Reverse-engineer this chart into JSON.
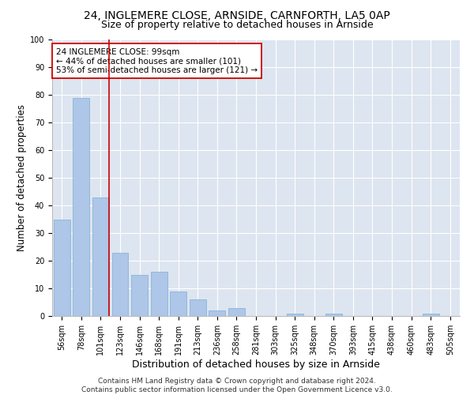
{
  "title_line1": "24, INGLEMERE CLOSE, ARNSIDE, CARNFORTH, LA5 0AP",
  "title_line2": "Size of property relative to detached houses in Arnside",
  "xlabel": "Distribution of detached houses by size in Arnside",
  "ylabel": "Number of detached properties",
  "categories": [
    "56sqm",
    "78sqm",
    "101sqm",
    "123sqm",
    "146sqm",
    "168sqm",
    "191sqm",
    "213sqm",
    "236sqm",
    "258sqm",
    "281sqm",
    "303sqm",
    "325sqm",
    "348sqm",
    "370sqm",
    "393sqm",
    "415sqm",
    "438sqm",
    "460sqm",
    "483sqm",
    "505sqm"
  ],
  "values": [
    35,
    79,
    43,
    23,
    15,
    16,
    9,
    6,
    2,
    3,
    0,
    0,
    1,
    0,
    1,
    0,
    0,
    0,
    0,
    1,
    0
  ],
  "bar_color": "#aec6e8",
  "bar_edge_color": "#7aafd4",
  "vline_index": 2,
  "vline_color": "#cc0000",
  "annotation_text": "24 INGLEMERE CLOSE: 99sqm\n← 44% of detached houses are smaller (101)\n53% of semi-detached houses are larger (121) →",
  "annotation_box_color": "#ffffff",
  "annotation_box_edge": "#cc0000",
  "ylim": [
    0,
    100
  ],
  "yticks": [
    0,
    10,
    20,
    30,
    40,
    50,
    60,
    70,
    80,
    90,
    100
  ],
  "background_color": "#dde5f0",
  "footer": "Contains HM Land Registry data © Crown copyright and database right 2024.\nContains public sector information licensed under the Open Government Licence v3.0.",
  "title_fontsize": 10,
  "subtitle_fontsize": 9,
  "tick_fontsize": 7,
  "ylabel_fontsize": 8.5,
  "xlabel_fontsize": 9,
  "annotation_fontsize": 7.5,
  "footer_fontsize": 6.5
}
